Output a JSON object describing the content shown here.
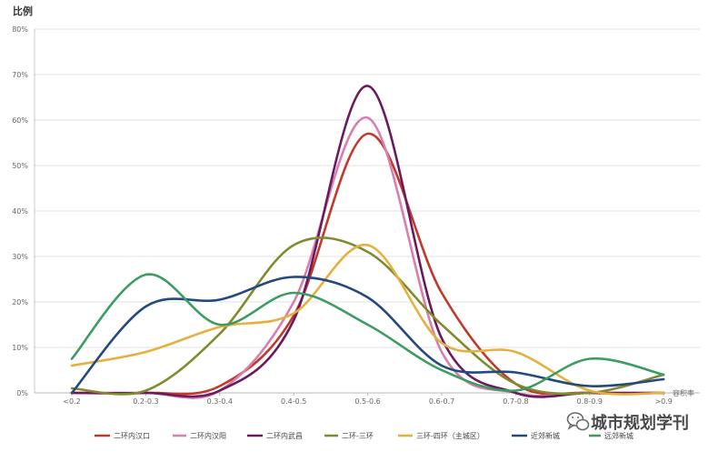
{
  "chart_data": {
    "type": "line",
    "ylabel": "比例",
    "xlabel": "容积率",
    "categories": [
      "<0.2",
      "0.2-0.3",
      "0.3-0.4",
      "0.4-0.5",
      "0.5-0.6",
      "0.6-0.7",
      "0.7-0.8",
      "0.8-0.9",
      ">0.9"
    ],
    "ylim": [
      0,
      80
    ],
    "y_unit": "%",
    "yticks": [
      {
        "value": 0,
        "label": "0%"
      },
      {
        "value": 10,
        "label": "10%"
      },
      {
        "value": 20,
        "label": "20%"
      },
      {
        "value": 30,
        "label": "30%"
      },
      {
        "value": 40,
        "label": "40%"
      },
      {
        "value": 50,
        "label": "50%"
      },
      {
        "value": 60,
        "label": "60%"
      },
      {
        "value": 70,
        "label": "70%"
      },
      {
        "value": 80,
        "label": "80%"
      }
    ],
    "grid": true,
    "smooth": true,
    "legend_position": "bottom",
    "series": [
      {
        "name": "二环内汉口",
        "color": "#c0392b",
        "values": [
          0,
          0,
          1.5,
          17,
          57,
          22,
          2,
          0,
          0
        ]
      },
      {
        "name": "二环内汉阳",
        "color": "#d67fb0",
        "values": [
          0,
          0,
          0.5,
          20,
          60.5,
          9,
          0,
          0,
          0
        ]
      },
      {
        "name": "二环内武昌",
        "color": "#6a1b5e",
        "values": [
          0,
          0,
          0.5,
          16,
          67.5,
          12,
          0,
          0,
          0
        ]
      },
      {
        "name": "二环-三环",
        "color": "#808b2f",
        "values": [
          1,
          0.5,
          13,
          32.5,
          31,
          15,
          2,
          0,
          4
        ]
      },
      {
        "name": "三环-四环（主城区）",
        "color": "#e5b03d",
        "values": [
          6,
          9,
          14.5,
          17.5,
          32.5,
          11,
          9,
          0.5,
          0
        ]
      },
      {
        "name": "近郊新城",
        "color": "#23497d",
        "values": [
          0,
          19,
          20.5,
          25.5,
          21,
          6,
          4.5,
          1.5,
          3
        ]
      },
      {
        "name": "远郊新城",
        "color": "#3d9c62",
        "values": [
          7.5,
          26,
          15,
          22,
          15,
          5,
          0.5,
          7.5,
          4
        ]
      }
    ]
  },
  "watermark": {
    "icon": "wechat-icon",
    "text": "城市规划学刊"
  }
}
